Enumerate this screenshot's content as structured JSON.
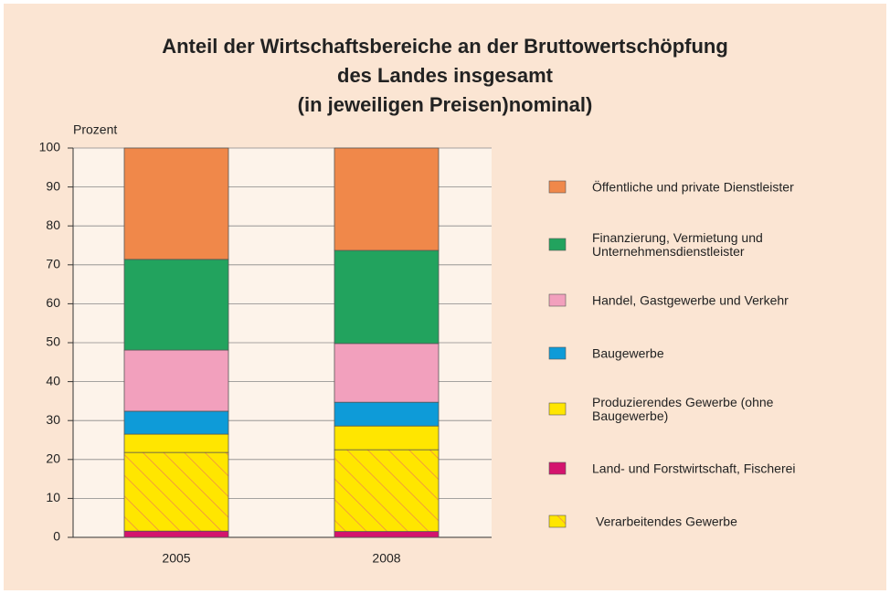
{
  "chart_data": {
    "type": "stacked_bar",
    "title": [
      "Anteil der Wirtschaftsbereiche an der Bruttowertschöpfung",
      "des Landes insgesamt",
      "(in jeweiligen Preisen)nominal)"
    ],
    "y_label": "Prozent",
    "categories": [
      "2005",
      "2008"
    ],
    "ylim": [
      0,
      100
    ],
    "yticks": [
      0,
      10,
      20,
      30,
      40,
      50,
      60,
      70,
      80,
      90,
      100
    ],
    "grid": true,
    "series": [
      {
        "name": "Öffentliche und private Dienstleister",
        "color": "#f0884a",
        "values": [
          28.6,
          26.3
        ]
      },
      {
        "name": "Finanzierung, Vermietung und Unternehmensdienstleister",
        "color": "#22a35e",
        "values": [
          23.3,
          23.9
        ]
      },
      {
        "name": "Handel, Gastgewerbe und Verkehr",
        "color": "#f2a0bd",
        "values": [
          15.7,
          15.1
        ]
      },
      {
        "name": "Baugewerbe",
        "color": "#0e9bd8",
        "values": [
          5.9,
          6.1
        ]
      },
      {
        "name": "Produzierendes Gewerbe (ohne Baugewerbe)",
        "color": "#ffe600",
        "values": [
          4.7,
          6.1
        ]
      },
      {
        "name": "Land- und Forstwirtschaft, Fischerei",
        "color": "#d4146e",
        "values": [
          1.6,
          1.5
        ]
      },
      {
        "name": "Verarbeitendes Gewerbe",
        "color": "#ffe600",
        "hatch": true,
        "values": [
          20.2,
          21.0
        ]
      }
    ]
  }
}
